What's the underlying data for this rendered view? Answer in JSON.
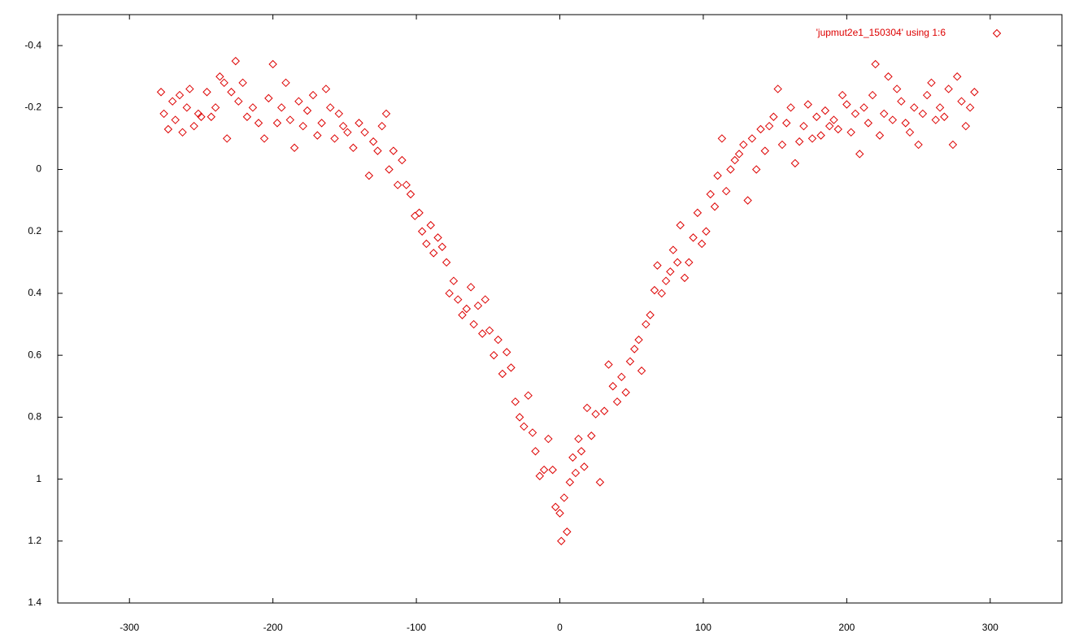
{
  "chart_data": {
    "type": "scatter",
    "xlim": [
      -350,
      350
    ],
    "ylim": [
      1.4,
      -0.5
    ],
    "xticks": [
      -300,
      -200,
      -100,
      0,
      100,
      200,
      300
    ],
    "yticks": [
      -0.4,
      -0.2,
      0,
      0.2,
      0.4,
      0.6,
      0.8,
      1,
      1.2,
      1.4
    ],
    "legend": "top-right",
    "series": [
      {
        "name": "'jupmut2e1_150304' using 1:6",
        "color": "#dd0000",
        "x": [
          -278,
          -276,
          -273,
          -270,
          -268,
          -265,
          -263,
          -260,
          -258,
          -255,
          -252,
          -250,
          -246,
          -243,
          -240,
          -237,
          -234,
          -232,
          -229,
          -226,
          -224,
          -221,
          -218,
          -214,
          -210,
          -206,
          -203,
          -200,
          -197,
          -194,
          -191,
          -188,
          -185,
          -182,
          -179,
          -176,
          -172,
          -169,
          -166,
          -163,
          -160,
          -157,
          -154,
          -151,
          -148,
          -144,
          -140,
          -136,
          -133,
          -130,
          -127,
          -124,
          -121,
          -119,
          -116,
          -113,
          -110,
          -107,
          -104,
          -101,
          -98,
          -96,
          -93,
          -90,
          -88,
          -85,
          -82,
          -79,
          -77,
          -74,
          -71,
          -68,
          -65,
          -62,
          -60,
          -57,
          -54,
          -52,
          -49,
          -46,
          -43,
          -40,
          -37,
          -34,
          -31,
          -28,
          -25,
          -22,
          -19,
          -17,
          -14,
          -11,
          -8,
          -5,
          -3,
          0,
          1,
          3,
          5,
          7,
          9,
          11,
          13,
          15,
          17,
          19,
          22,
          25,
          28,
          31,
          34,
          37,
          40,
          43,
          46,
          49,
          52,
          55,
          57,
          60,
          63,
          66,
          68,
          71,
          74,
          77,
          79,
          82,
          84,
          87,
          90,
          93,
          96,
          99,
          102,
          105,
          108,
          110,
          113,
          116,
          119,
          122,
          125,
          128,
          131,
          134,
          137,
          140,
          143,
          146,
          149,
          152,
          155,
          158,
          161,
          164,
          167,
          170,
          173,
          176,
          179,
          182,
          185,
          188,
          191,
          194,
          197,
          200,
          203,
          206,
          209,
          212,
          215,
          218,
          220,
          223,
          226,
          229,
          232,
          235,
          238,
          241,
          244,
          247,
          250,
          253,
          256,
          259,
          262,
          265,
          268,
          271,
          274,
          277,
          280,
          283,
          286,
          289
        ],
        "values": [
          -0.25,
          -0.18,
          -0.13,
          -0.22,
          -0.16,
          -0.24,
          -0.12,
          -0.2,
          -0.26,
          -0.14,
          -0.18,
          -0.17,
          -0.25,
          -0.17,
          -0.2,
          -0.3,
          -0.28,
          -0.1,
          -0.25,
          -0.35,
          -0.22,
          -0.28,
          -0.17,
          -0.2,
          -0.15,
          -0.1,
          -0.23,
          -0.34,
          -0.15,
          -0.2,
          -0.28,
          -0.16,
          -0.07,
          -0.22,
          -0.14,
          -0.19,
          -0.24,
          -0.11,
          -0.15,
          -0.26,
          -0.2,
          -0.1,
          -0.18,
          -0.14,
          -0.12,
          -0.07,
          -0.15,
          -0.12,
          0.02,
          -0.09,
          -0.06,
          -0.14,
          -0.18,
          0.0,
          -0.06,
          0.05,
          -0.03,
          0.05,
          0.08,
          0.15,
          0.14,
          0.2,
          0.24,
          0.18,
          0.27,
          0.22,
          0.25,
          0.3,
          0.4,
          0.36,
          0.42,
          0.47,
          0.45,
          0.38,
          0.5,
          0.44,
          0.53,
          0.42,
          0.52,
          0.6,
          0.55,
          0.66,
          0.59,
          0.64,
          0.75,
          0.8,
          0.83,
          0.73,
          0.85,
          0.91,
          0.99,
          0.97,
          0.87,
          0.97,
          1.09,
          1.11,
          1.2,
          1.06,
          1.17,
          1.01,
          0.93,
          0.98,
          0.87,
          0.91,
          0.96,
          0.77,
          0.86,
          0.79,
          1.01,
          0.78,
          0.63,
          0.7,
          0.75,
          0.67,
          0.72,
          0.62,
          0.58,
          0.55,
          0.65,
          0.5,
          0.47,
          0.39,
          0.31,
          0.4,
          0.36,
          0.33,
          0.26,
          0.3,
          0.18,
          0.35,
          0.3,
          0.22,
          0.14,
          0.24,
          0.2,
          0.08,
          0.12,
          0.02,
          -0.1,
          0.07,
          0.0,
          -0.03,
          -0.05,
          -0.08,
          0.1,
          -0.1,
          0.0,
          -0.13,
          -0.06,
          -0.14,
          -0.17,
          -0.26,
          -0.08,
          -0.15,
          -0.2,
          -0.02,
          -0.09,
          -0.14,
          -0.21,
          -0.1,
          -0.17,
          -0.11,
          -0.19,
          -0.14,
          -0.16,
          -0.13,
          -0.24,
          -0.21,
          -0.12,
          -0.18,
          -0.05,
          -0.2,
          -0.15,
          -0.24,
          -0.34,
          -0.11,
          -0.18,
          -0.3,
          -0.16,
          -0.26,
          -0.22,
          -0.15,
          -0.12,
          -0.2,
          -0.08,
          -0.18,
          -0.24,
          -0.28,
          -0.16,
          -0.2,
          -0.17,
          -0.26,
          -0.08,
          -0.3,
          -0.22,
          -0.14,
          -0.2,
          -0.25
        ]
      }
    ]
  }
}
